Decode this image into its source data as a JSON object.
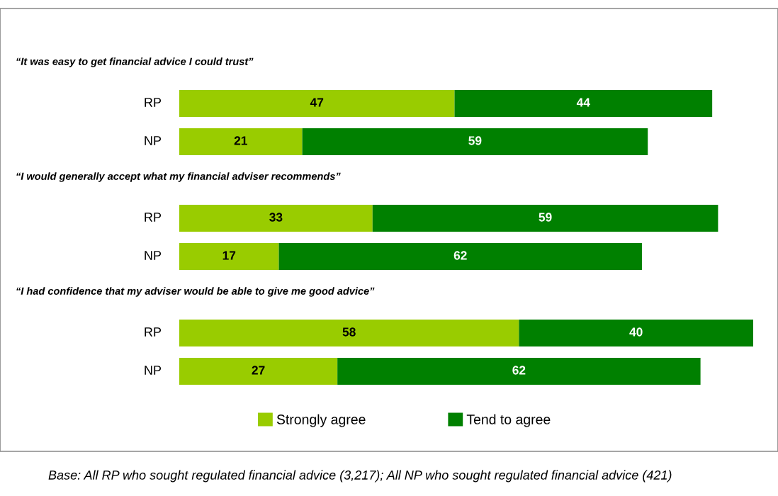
{
  "chart_data": {
    "type": "bar",
    "orientation": "horizontal",
    "stacked": true,
    "data_labels": true,
    "legend": "bottom",
    "categories": [
      "RP",
      "NP",
      "RP",
      "NP",
      "RP",
      "NP"
    ],
    "series": [
      {
        "name": "Strongly agree",
        "color": "#99cc00",
        "values": [
          47,
          21,
          33,
          17,
          58,
          27
        ]
      },
      {
        "name": "Tend to agree",
        "color": "#008000",
        "values": [
          44,
          59,
          59,
          62,
          40,
          62
        ]
      }
    ],
    "annotations": [
      "“It was easy to get financial advice I could trust”",
      "“I would generally accept what my financial adviser recommends”",
      "“I had confidence that my adviser would be able to give me good advice”",
      "Base: All RP who sought regulated financial advice (3,217); All NP who sought regulated financial advice (421)"
    ]
  }
}
